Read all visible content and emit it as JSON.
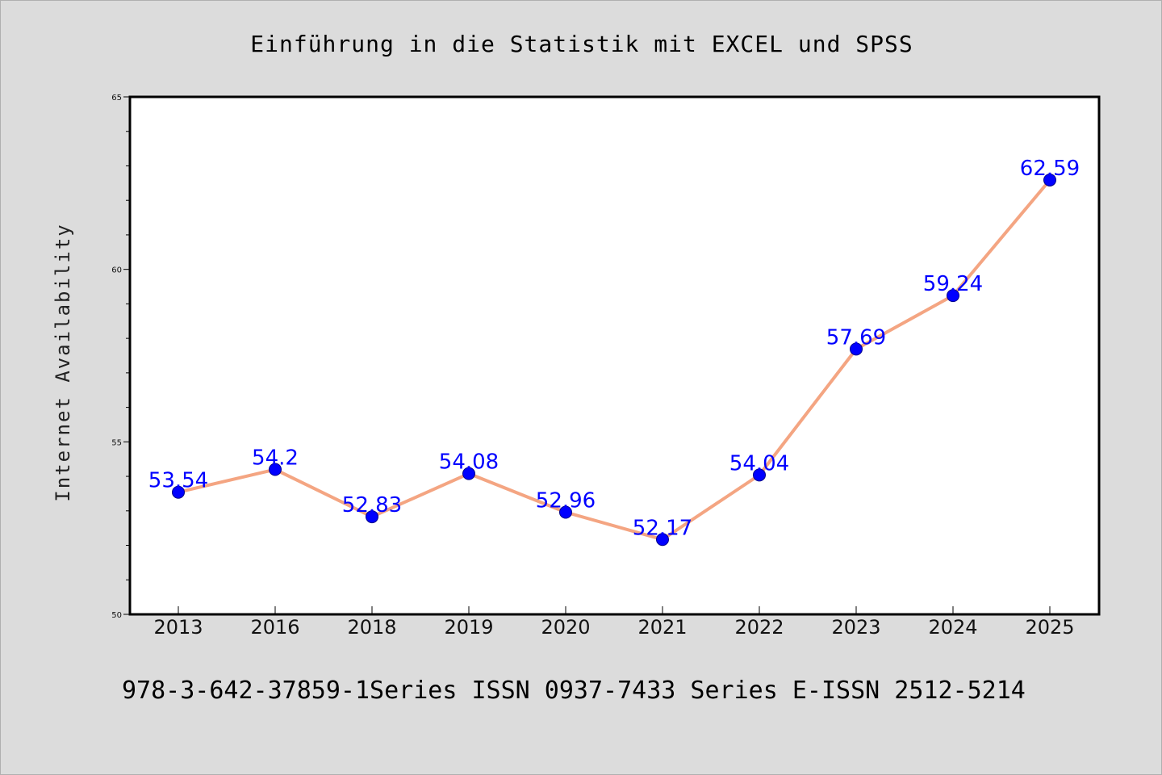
{
  "chart_data": {
    "type": "line",
    "title": "Einführung in die Statistik mit EXCEL und SPSS",
    "xlabel": "",
    "ylabel": "Internet Availability",
    "categories": [
      "2013",
      "2016",
      "2018",
      "2019",
      "2020",
      "2021",
      "2022",
      "2023",
      "2024",
      "2025"
    ],
    "series": [
      {
        "values": [
          53.54,
          54.2,
          52.83,
          54.08,
          52.96,
          52.17,
          54.04,
          57.69,
          59.24,
          62.59
        ],
        "color": "#f4a582",
        "marker_color": "#0000ff"
      }
    ],
    "data_labels": [
      "53.54",
      "54.2",
      "52.83",
      "54.08",
      "52.96",
      "52.17",
      "54.04",
      "57.69",
      "59.24",
      "62.59"
    ],
    "yticks": [
      "50",
      "55",
      "60",
      "65"
    ],
    "ylim": [
      50,
      65
    ],
    "grid": false,
    "legend": "none",
    "label_color": "#0000ff"
  },
  "footer": "978-3-642-37859-1Series ISSN 0937-7433 Series E-ISSN 2512-5214"
}
